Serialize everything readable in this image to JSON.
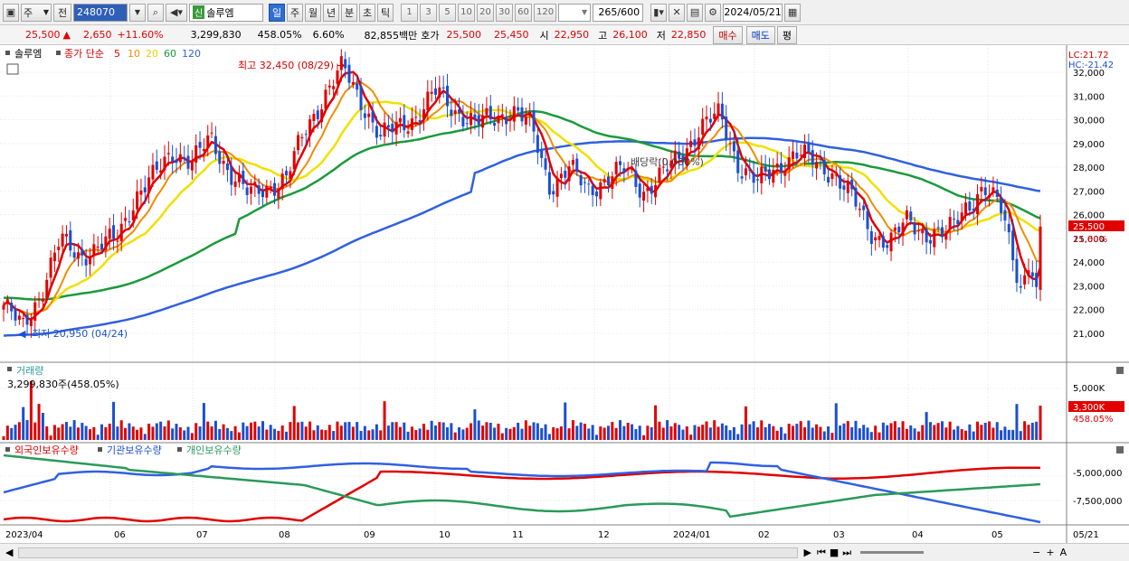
{
  "toolbar": {
    "market_jong": "주",
    "prev_label": "전",
    "code": "248070",
    "new_badge": "신",
    "stock_name": "솔루엠",
    "periods": [
      "일",
      "주",
      "월",
      "년",
      "분",
      "초",
      "틱"
    ],
    "active_period": "일",
    "intervals": [
      "1",
      "3",
      "5",
      "10",
      "20",
      "30",
      "60",
      "120"
    ],
    "count": "265",
    "count_max": "/600",
    "date": "2024/05/21"
  },
  "quote": {
    "price": "25,500",
    "change": "2,650",
    "change_pct": "+11.60%",
    "volume": "3,299,830",
    "volume_ratio": "458.05%",
    "turnover": "6.60%",
    "amount": "82,855백만",
    "hoga_label": "호가",
    "ask": "25,500",
    "bid": "25,450",
    "open_label": "시",
    "open": "22,950",
    "high_label": "고",
    "high": "26,100",
    "low_label": "저",
    "low": "22,850",
    "buy_label": "매수",
    "sell_label": "매도",
    "avg_label": "평"
  },
  "colors": {
    "candle_up": "#e00000",
    "candle_down": "#1a4fd0",
    "ma5": "#e00000",
    "ma10": "#f08c00",
    "ma20": "#f0e000",
    "ma60": "#1a9a3a",
    "ma120": "#3060e0",
    "foreign": "#e00000",
    "institution": "#3060e0",
    "individual": "#2a9a5a"
  },
  "chart_data": [
    {
      "type": "candlestick",
      "legend": {
        "name": "솔루엠",
        "price_label": "종가 단순",
        "ma_periods": [
          "5",
          "10",
          "20",
          "60",
          "120"
        ]
      },
      "ylim": [
        20000,
        33000
      ],
      "y_ticks": [
        "32,000",
        "31,000",
        "30,000",
        "29,000",
        "28,000",
        "27,000",
        "26,000",
        "25,000",
        "24,000",
        "23,000",
        "22,000",
        "21,000"
      ],
      "lc_label": "LC:21.72",
      "hc_label": "HC:-21.42",
      "last_price_label": "25,500",
      "last_pct_label": "11.60%",
      "annotations": {
        "high": "최고 32,450 (08/29)",
        "low": "최저 20,950 (04/24)",
        "mid": "배당락(0.000%)"
      },
      "x_labels": [
        "2023/04",
        "06",
        "07",
        "08",
        "09",
        "10",
        "11",
        "12",
        "2024/01",
        "02",
        "03",
        "04",
        "05",
        "05/21"
      ],
      "close_path": [
        [
          "2023/04",
          22200
        ],
        [
          "2023/04",
          21200
        ],
        [
          "2023/05",
          22800
        ],
        [
          "2023/05",
          24900
        ],
        [
          "2023/05",
          24300
        ],
        [
          "2023/06",
          24600
        ],
        [
          "2023/06",
          25000
        ],
        [
          "2023/06",
          26800
        ],
        [
          "2023/06",
          27600
        ],
        [
          "2023/07",
          28700
        ],
        [
          "2023/07",
          28200
        ],
        [
          "2023/07",
          29200
        ],
        [
          "2023/07",
          27800
        ],
        [
          "2023/07",
          26800
        ],
        [
          "2023/08",
          27200
        ],
        [
          "2023/08",
          27500
        ],
        [
          "2023/08",
          29600
        ],
        [
          "2023/08",
          31000
        ],
        [
          "2023/08",
          32200
        ],
        [
          "2023/09",
          30800
        ],
        [
          "2023/09",
          29200
        ],
        [
          "2023/09",
          29800
        ],
        [
          "2023/09",
          30200
        ],
        [
          "2023/10",
          31200
        ],
        [
          "2023/10",
          30400
        ],
        [
          "2023/10",
          29800
        ],
        [
          "2023/10",
          30100
        ],
        [
          "2023/11",
          30400
        ],
        [
          "2023/11",
          29700
        ],
        [
          "2023/11",
          27200
        ],
        [
          "2023/11",
          27900
        ],
        [
          "2023/12",
          27100
        ],
        [
          "2023/12",
          27500
        ],
        [
          "2023/12",
          27900
        ],
        [
          "2023/12",
          27000
        ],
        [
          "2024/01",
          27700
        ],
        [
          "2024/01",
          28600
        ],
        [
          "2024/01",
          29700
        ],
        [
          "2024/01",
          30200
        ],
        [
          "2024/02",
          28100
        ],
        [
          "2024/02",
          27300
        ],
        [
          "2024/02",
          28000
        ],
        [
          "2024/02",
          28600
        ],
        [
          "2024/03",
          28200
        ],
        [
          "2024/03",
          27800
        ],
        [
          "2024/03",
          26700
        ],
        [
          "2024/03",
          25300
        ],
        [
          "2024/04",
          24800
        ],
        [
          "2024/04",
          25800
        ],
        [
          "2024/04",
          25200
        ],
        [
          "2024/04",
          25100
        ],
        [
          "2024/05",
          26400
        ],
        [
          "2024/05",
          27000
        ],
        [
          "2024/05",
          26200
        ],
        [
          "2024/05",
          22850
        ],
        [
          "2024/05/21",
          25500
        ]
      ]
    },
    {
      "type": "bar",
      "title": "거래량",
      "current_label": "3,299,830주(458.05%)",
      "y_ticks": [
        "5,000K"
      ],
      "last_value_label": "3,300K",
      "last_pct_label": "458.05%"
    },
    {
      "type": "line",
      "series": [
        {
          "name": "외국인보유수량"
        },
        {
          "name": "기관보유수량"
        },
        {
          "name": "개인보유수량"
        }
      ],
      "y_ticks": [
        "-5,000,000",
        "-7,500,000"
      ]
    }
  ]
}
